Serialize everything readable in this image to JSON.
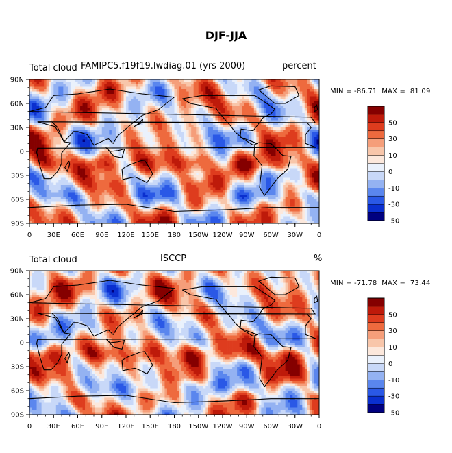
{
  "title": "DJF-JJA",
  "colors": [
    "#00007F",
    "#0A2FCF",
    "#2A58E6",
    "#5A86EE",
    "#94B2F2",
    "#C8D8F8",
    "#EAF1FC",
    "#FCE8DC",
    "#F8C6AA",
    "#F59E7A",
    "#EE6A3E",
    "#DE3C1E",
    "#BE1A0A",
    "#850000"
  ],
  "coastline_color": "#000000",
  "panels": [
    {
      "left_label": "Total cloud",
      "center_label": "FAMIPC5.f19f19.lwdiag.01 (yrs 2000)",
      "right_label": "percent",
      "min_label": "MIN =",
      "min_value": "-86.71",
      "max_label": "MAX =",
      "max_value": "81.09"
    },
    {
      "left_label": "Total cloud",
      "center_label": "ISCCP",
      "right_label": "%",
      "min_label": "MIN =",
      "min_value": "-71.78",
      "max_label": "MAX =",
      "max_value": "73.44"
    }
  ],
  "chart_data": {
    "type": "heatmap",
    "title": "DJF-JJA",
    "variable": "Total cloud",
    "x_ticks": [
      "0",
      "30E",
      "60E",
      "90E",
      "120E",
      "150E",
      "180",
      "150W",
      "120W",
      "90W",
      "60W",
      "30W",
      "0"
    ],
    "y_ticks": [
      "90N",
      "60N",
      "30N",
      "0",
      "30S",
      "60S",
      "90S"
    ],
    "x_range": [
      0,
      360
    ],
    "y_range": [
      -90,
      90
    ],
    "colorbar_levels": [
      -60,
      -50,
      -40,
      -30,
      -20,
      -10,
      -5,
      0,
      5,
      10,
      20,
      30,
      40,
      50,
      60
    ],
    "colorbar_labels": [
      "50",
      "30",
      "10",
      "0",
      "-10",
      "-30",
      "-50"
    ],
    "maps": [
      {
        "name": "FAMIPC5.f19f19.lwdiag.01 (yrs 2000)",
        "units": "percent",
        "min": -86.71,
        "max": 81.09
      },
      {
        "name": "ISCCP",
        "units": "%",
        "min": -71.78,
        "max": 73.44
      }
    ]
  }
}
